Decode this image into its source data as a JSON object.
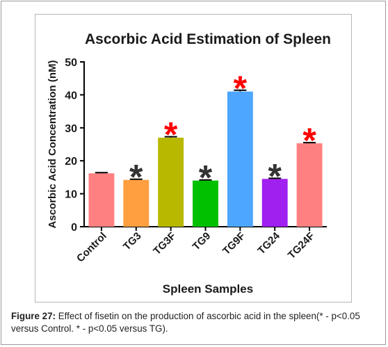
{
  "chart_data": {
    "type": "bar",
    "title": "Ascorbic Acid Estimation of Spleen",
    "xlabel": "Spleen Samples",
    "ylabel": "Ascorbic Acid Concentration (nM)",
    "ylim": [
      0,
      50
    ],
    "yticks": [
      "0",
      "10",
      "20",
      "30",
      "40",
      "50"
    ],
    "categories": [
      "Control",
      "TG3",
      "TG3F",
      "TG9",
      "TG9F",
      "TG24",
      "TG24F"
    ],
    "values": [
      16.2,
      14.2,
      27.0,
      14.0,
      41.0,
      14.5,
      25.3
    ],
    "errors": [
      0.2,
      0.2,
      0.3,
      0.2,
      0.4,
      0.2,
      0.2
    ],
    "colors": [
      "#ff8080",
      "#ff9f40",
      "#b8b800",
      "#00c000",
      "#4da6ff",
      "#a020f0",
      "#ff8080"
    ],
    "significance": [
      "",
      "*",
      "*",
      "*",
      "*",
      "*",
      "*"
    ],
    "significance_colors": [
      "",
      "#333333",
      "#ff0000",
      "#333333",
      "#ff0000",
      "#333333",
      "#ff0000"
    ],
    "grid": false,
    "legend": "none"
  },
  "caption": {
    "label": "Figure 27:",
    "text": " Effect of fisetin on the production of ascorbic acid in the spleen(* - p<0.05 versus Control. * - p<0.05 versus TG)."
  }
}
